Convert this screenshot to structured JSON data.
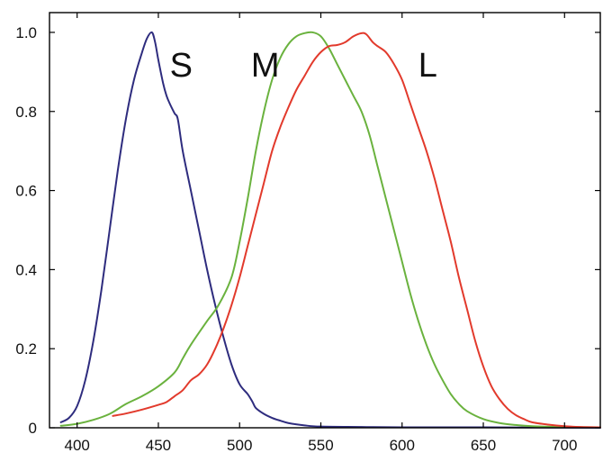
{
  "chart_data": {
    "type": "line",
    "title": "",
    "xlabel": "",
    "ylabel": "",
    "xlim": [
      383,
      722
    ],
    "ylim": [
      0,
      1.05
    ],
    "x_ticks": [
      400,
      450,
      500,
      550,
      600,
      650,
      700
    ],
    "y_ticks": [
      0,
      0.2,
      0.4,
      0.6,
      0.8,
      1.0
    ],
    "x_tick_labels": [
      "400",
      "450",
      "500",
      "550",
      "600",
      "650",
      "700"
    ],
    "y_tick_labels": [
      "0",
      "0.2",
      "0.4",
      "0.6",
      "0.8",
      "1.0"
    ],
    "grid": false,
    "legend": "none",
    "series": [
      {
        "name": "S",
        "color": "#2e2c7e",
        "label_at": [
          457,
          0.92
        ],
        "points": [
          [
            390,
            0.014
          ],
          [
            395,
            0.025
          ],
          [
            400,
            0.055
          ],
          [
            405,
            0.12
          ],
          [
            410,
            0.22
          ],
          [
            415,
            0.35
          ],
          [
            420,
            0.5
          ],
          [
            425,
            0.65
          ],
          [
            430,
            0.78
          ],
          [
            435,
            0.88
          ],
          [
            440,
            0.95
          ],
          [
            443,
            0.985
          ],
          [
            446,
            1.0
          ],
          [
            448,
            0.975
          ],
          [
            450,
            0.93
          ],
          [
            453,
            0.87
          ],
          [
            455,
            0.84
          ],
          [
            457,
            0.82
          ],
          [
            460,
            0.795
          ],
          [
            462,
            0.78
          ],
          [
            465,
            0.7
          ],
          [
            470,
            0.6
          ],
          [
            475,
            0.5
          ],
          [
            480,
            0.4
          ],
          [
            485,
            0.31
          ],
          [
            490,
            0.23
          ],
          [
            495,
            0.16
          ],
          [
            500,
            0.11
          ],
          [
            505,
            0.085
          ],
          [
            508,
            0.065
          ],
          [
            510,
            0.05
          ],
          [
            515,
            0.035
          ],
          [
            520,
            0.025
          ],
          [
            525,
            0.018
          ],
          [
            530,
            0.012
          ],
          [
            540,
            0.006
          ],
          [
            550,
            0.003
          ],
          [
            575,
            0.002
          ],
          [
            600,
            0.001
          ],
          [
            650,
            0.001
          ],
          [
            722,
            0.0
          ]
        ]
      },
      {
        "name": "M",
        "color": "#6ab23e",
        "label_at": [
          507,
          0.92
        ],
        "points": [
          [
            390,
            0.005
          ],
          [
            400,
            0.01
          ],
          [
            410,
            0.02
          ],
          [
            420,
            0.035
          ],
          [
            430,
            0.06
          ],
          [
            440,
            0.08
          ],
          [
            450,
            0.105
          ],
          [
            460,
            0.14
          ],
          [
            465,
            0.175
          ],
          [
            470,
            0.21
          ],
          [
            480,
            0.27
          ],
          [
            487,
            0.31
          ],
          [
            495,
            0.38
          ],
          [
            500,
            0.47
          ],
          [
            505,
            0.58
          ],
          [
            510,
            0.7
          ],
          [
            515,
            0.8
          ],
          [
            520,
            0.88
          ],
          [
            525,
            0.935
          ],
          [
            530,
            0.97
          ],
          [
            535,
            0.99
          ],
          [
            540,
            0.998
          ],
          [
            545,
            1.0
          ],
          [
            550,
            0.99
          ],
          [
            555,
            0.96
          ],
          [
            560,
            0.92
          ],
          [
            565,
            0.88
          ],
          [
            570,
            0.84
          ],
          [
            575,
            0.8
          ],
          [
            580,
            0.74
          ],
          [
            585,
            0.66
          ],
          [
            590,
            0.58
          ],
          [
            595,
            0.5
          ],
          [
            600,
            0.42
          ],
          [
            605,
            0.34
          ],
          [
            610,
            0.27
          ],
          [
            615,
            0.21
          ],
          [
            620,
            0.16
          ],
          [
            625,
            0.12
          ],
          [
            630,
            0.085
          ],
          [
            635,
            0.06
          ],
          [
            640,
            0.042
          ],
          [
            650,
            0.022
          ],
          [
            660,
            0.012
          ],
          [
            670,
            0.007
          ],
          [
            680,
            0.004
          ],
          [
            700,
            0.002
          ],
          [
            722,
            0.001
          ]
        ]
      },
      {
        "name": "L",
        "color": "#e23a2c",
        "label_at": [
          610,
          0.92
        ],
        "points": [
          [
            422,
            0.03
          ],
          [
            430,
            0.036
          ],
          [
            440,
            0.046
          ],
          [
            450,
            0.058
          ],
          [
            455,
            0.065
          ],
          [
            460,
            0.08
          ],
          [
            465,
            0.095
          ],
          [
            470,
            0.12
          ],
          [
            475,
            0.135
          ],
          [
            480,
            0.16
          ],
          [
            485,
            0.2
          ],
          [
            490,
            0.25
          ],
          [
            495,
            0.31
          ],
          [
            500,
            0.38
          ],
          [
            505,
            0.46
          ],
          [
            510,
            0.54
          ],
          [
            515,
            0.62
          ],
          [
            520,
            0.7
          ],
          [
            525,
            0.76
          ],
          [
            530,
            0.81
          ],
          [
            535,
            0.855
          ],
          [
            540,
            0.89
          ],
          [
            545,
            0.925
          ],
          [
            550,
            0.95
          ],
          [
            555,
            0.965
          ],
          [
            560,
            0.968
          ],
          [
            565,
            0.975
          ],
          [
            570,
            0.99
          ],
          [
            575,
            0.998
          ],
          [
            578,
            0.995
          ],
          [
            582,
            0.975
          ],
          [
            585,
            0.965
          ],
          [
            590,
            0.95
          ],
          [
            595,
            0.92
          ],
          [
            600,
            0.88
          ],
          [
            605,
            0.82
          ],
          [
            610,
            0.76
          ],
          [
            615,
            0.7
          ],
          [
            620,
            0.63
          ],
          [
            625,
            0.55
          ],
          [
            630,
            0.47
          ],
          [
            635,
            0.38
          ],
          [
            640,
            0.3
          ],
          [
            645,
            0.22
          ],
          [
            650,
            0.155
          ],
          [
            655,
            0.105
          ],
          [
            660,
            0.072
          ],
          [
            665,
            0.048
          ],
          [
            670,
            0.032
          ],
          [
            675,
            0.022
          ],
          [
            680,
            0.014
          ],
          [
            690,
            0.008
          ],
          [
            700,
            0.004
          ],
          [
            710,
            0.002
          ],
          [
            722,
            0.001
          ]
        ]
      }
    ]
  }
}
